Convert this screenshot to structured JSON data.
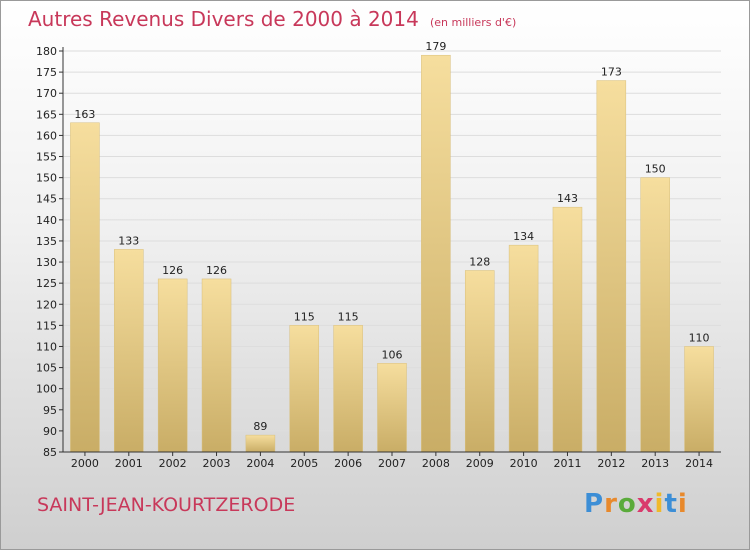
{
  "chart_data": {
    "type": "bar",
    "title": "Autres Revenus Divers de 2000 à 2014",
    "unit_note": "(en milliers d'€)",
    "categories": [
      "2000",
      "2001",
      "2002",
      "2003",
      "2004",
      "2005",
      "2006",
      "2007",
      "2008",
      "2009",
      "2010",
      "2011",
      "2012",
      "2013",
      "2014"
    ],
    "values": [
      163,
      133,
      126,
      126,
      89,
      115,
      115,
      106,
      179,
      128,
      134,
      143,
      173,
      150,
      110
    ],
    "ylim": [
      85,
      180
    ],
    "yticks": [
      85,
      90,
      95,
      100,
      105,
      110,
      115,
      120,
      125,
      130,
      135,
      140,
      145,
      150,
      155,
      160,
      165,
      170,
      175,
      180
    ],
    "grid": true,
    "legend": "none",
    "bar_color": "#e9cf85",
    "grid_color": "#dddddd"
  },
  "footer": {
    "city": "SAINT-JEAN-KOURTZERODE",
    "logo": {
      "p": "P",
      "r": "r",
      "o": "o",
      "x": "x",
      "i": "i",
      "t": "t",
      "i2": "i"
    }
  }
}
